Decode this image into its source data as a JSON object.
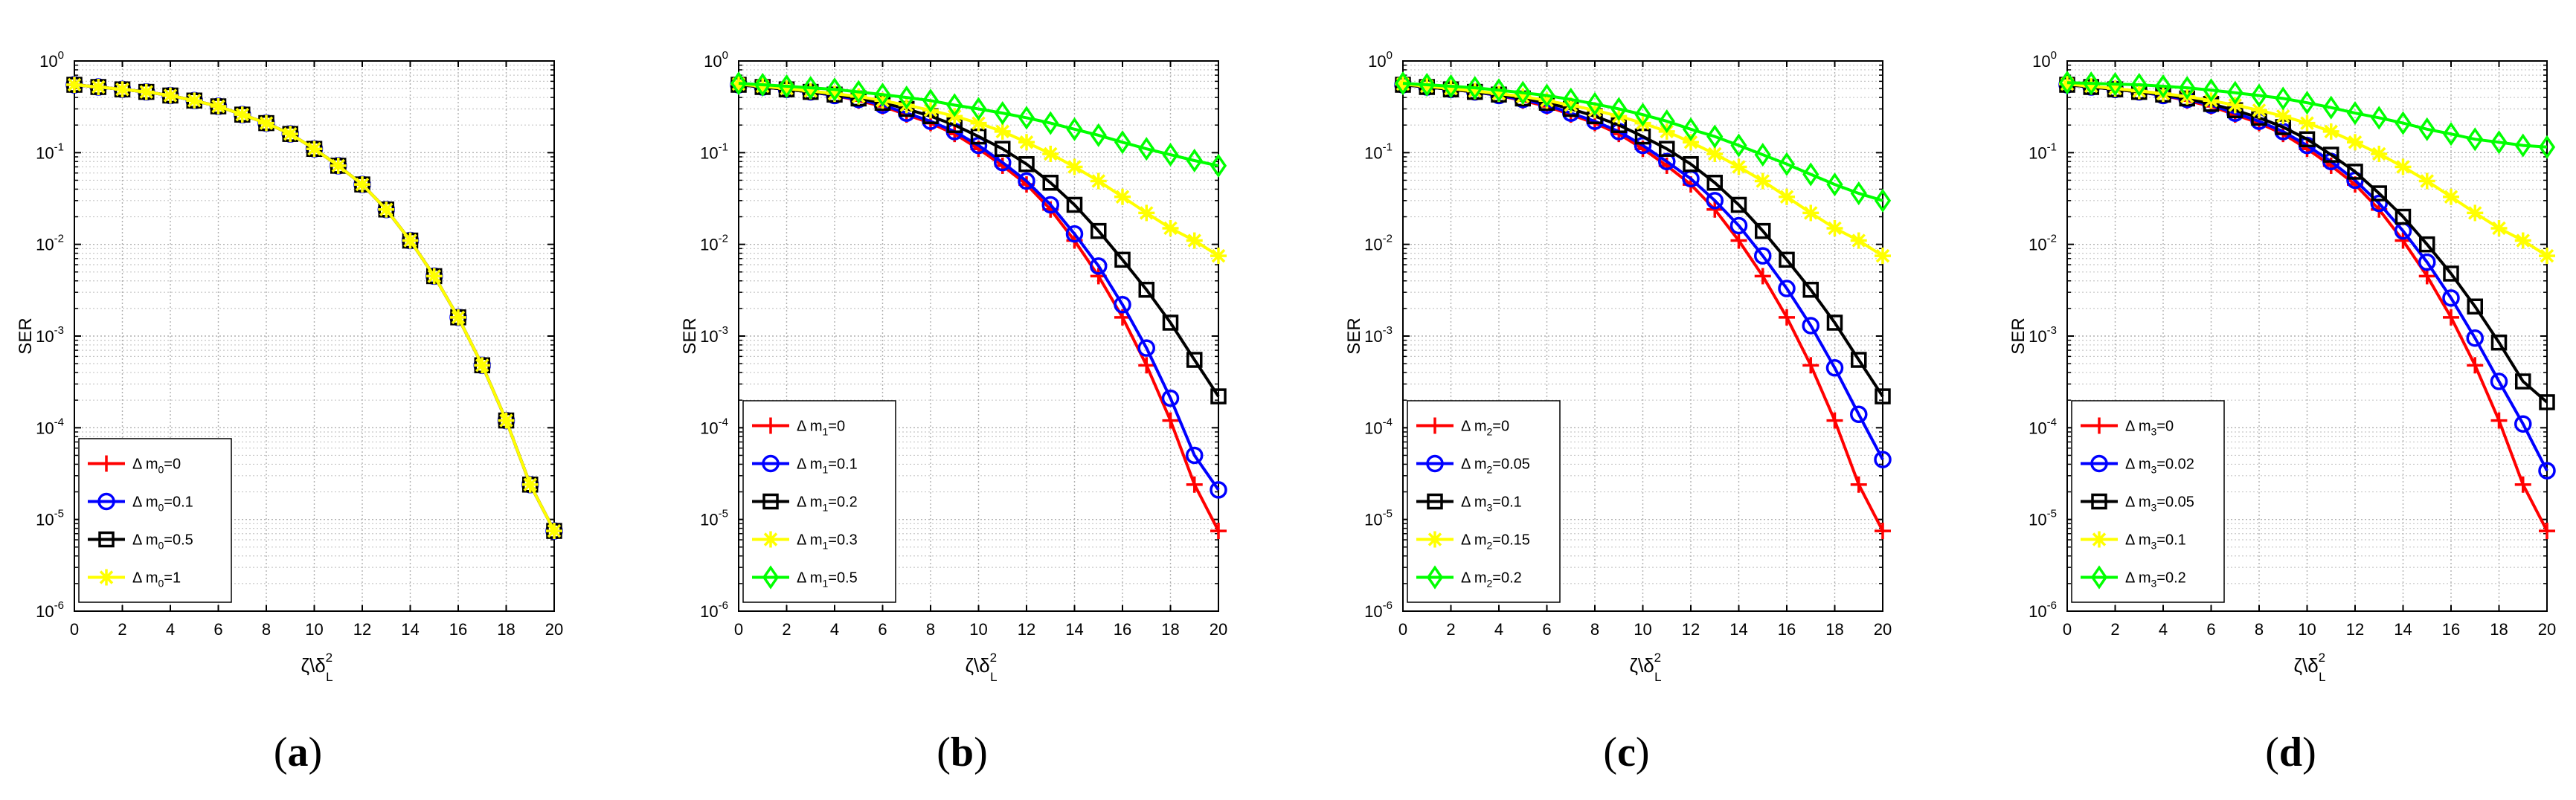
{
  "figure": {
    "panels": [
      {
        "caption": "(a)"
      },
      {
        "caption": "(b)"
      },
      {
        "caption": "(c)"
      },
      {
        "caption": "(d)"
      }
    ]
  },
  "chart_data": [
    {
      "type": "line",
      "title": "",
      "ylabel": "SER",
      "xlabel": "ζ\\δ",
      "xlabel_superscript": "2",
      "xlabel_subscript": "L",
      "yscale": "log",
      "xlim": [
        0,
        20
      ],
      "ylim": [
        1e-06,
        1
      ],
      "xticks": [
        0,
        2,
        4,
        6,
        8,
        10,
        12,
        14,
        16,
        18,
        20
      ],
      "yticks": [
        {
          "value": 1,
          "label": "10",
          "exp": "0"
        },
        {
          "value": 0.1,
          "label": "10",
          "exp": "-1"
        },
        {
          "value": 0.01,
          "label": "10",
          "exp": "-2"
        },
        {
          "value": 0.001,
          "label": "10",
          "exp": "-3"
        },
        {
          "value": 0.0001,
          "label": "10",
          "exp": "-4"
        },
        {
          "value": 1e-05,
          "label": "10",
          "exp": "-5"
        },
        {
          "value": 1e-06,
          "label": "10",
          "exp": "-6"
        }
      ],
      "grid": true,
      "legend_position": "bottom-left",
      "x": [
        0,
        1,
        2,
        3,
        4,
        5,
        6,
        7,
        8,
        9,
        10,
        11,
        12,
        13,
        14,
        15,
        16,
        17,
        18,
        19,
        20
      ],
      "series": [
        {
          "name": "Δ m0=0",
          "legend_prefix": "Δ m",
          "legend_sub": "0",
          "legend_suffix": "=0",
          "color": "#ff0000",
          "marker": "plus",
          "values": [
            0.55,
            0.52,
            0.49,
            0.46,
            0.42,
            0.37,
            0.32,
            0.26,
            0.21,
            0.16,
            0.11,
            0.072,
            0.045,
            0.024,
            0.011,
            0.0045,
            0.0016,
            0.00048,
            0.00012,
            2.4e-05,
            7.5e-06
          ]
        },
        {
          "name": "Δ m0=0.1",
          "legend_prefix": "Δ m",
          "legend_sub": "0",
          "legend_suffix": "=0.1",
          "color": "#0000ff",
          "marker": "circle",
          "values": [
            0.55,
            0.52,
            0.49,
            0.46,
            0.42,
            0.37,
            0.32,
            0.26,
            0.21,
            0.16,
            0.11,
            0.072,
            0.045,
            0.024,
            0.011,
            0.0045,
            0.0016,
            0.00048,
            0.00012,
            2.4e-05,
            7.5e-06
          ]
        },
        {
          "name": "Δ m0=0.5",
          "legend_prefix": "Δ m",
          "legend_sub": "0",
          "legend_suffix": "=0.5",
          "color": "#000000",
          "marker": "square",
          "values": [
            0.55,
            0.52,
            0.49,
            0.46,
            0.42,
            0.37,
            0.32,
            0.26,
            0.21,
            0.16,
            0.11,
            0.072,
            0.045,
            0.024,
            0.011,
            0.0045,
            0.0016,
            0.00048,
            0.00012,
            2.4e-05,
            7.5e-06
          ]
        },
        {
          "name": "Δ m0=1",
          "legend_prefix": "Δ m",
          "legend_sub": "0",
          "legend_suffix": "=1",
          "color": "#ffff00",
          "marker": "star",
          "values": [
            0.55,
            0.52,
            0.49,
            0.46,
            0.42,
            0.37,
            0.32,
            0.26,
            0.21,
            0.16,
            0.11,
            0.072,
            0.045,
            0.024,
            0.011,
            0.0045,
            0.0016,
            0.00048,
            0.00012,
            2.4e-05,
            7.5e-06
          ]
        }
      ]
    },
    {
      "type": "line",
      "title": "",
      "ylabel": "SER",
      "xlabel": "ζ\\δ",
      "xlabel_superscript": "2",
      "xlabel_subscript": "L",
      "yscale": "log",
      "xlim": [
        0,
        20
      ],
      "ylim": [
        1e-06,
        1
      ],
      "xticks": [
        0,
        2,
        4,
        6,
        8,
        10,
        12,
        14,
        16,
        18,
        20
      ],
      "yticks": [
        {
          "value": 1,
          "label": "10",
          "exp": "0"
        },
        {
          "value": 0.1,
          "label": "10",
          "exp": "-1"
        },
        {
          "value": 0.01,
          "label": "10",
          "exp": "-2"
        },
        {
          "value": 0.001,
          "label": "10",
          "exp": "-3"
        },
        {
          "value": 0.0001,
          "label": "10",
          "exp": "-4"
        },
        {
          "value": 1e-05,
          "label": "10",
          "exp": "-5"
        },
        {
          "value": 1e-06,
          "label": "10",
          "exp": "-6"
        }
      ],
      "grid": true,
      "legend_position": "bottom-left",
      "x": [
        0,
        1,
        2,
        3,
        4,
        5,
        6,
        7,
        8,
        9,
        10,
        11,
        12,
        13,
        14,
        15,
        16,
        17,
        18,
        19,
        20
      ],
      "series": [
        {
          "name": "Δ m1=0",
          "legend_prefix": "Δ m",
          "legend_sub": "1",
          "legend_suffix": "=0",
          "color": "#ff0000",
          "marker": "plus",
          "values": [
            0.55,
            0.52,
            0.49,
            0.46,
            0.42,
            0.37,
            0.32,
            0.26,
            0.21,
            0.16,
            0.11,
            0.072,
            0.045,
            0.024,
            0.011,
            0.0045,
            0.0016,
            0.00048,
            0.00012,
            2.4e-05,
            7.5e-06
          ]
        },
        {
          "name": "Δ m1=0.1",
          "legend_prefix": "Δ m",
          "legend_sub": "1",
          "legend_suffix": "=0.1",
          "color": "#0000ff",
          "marker": "circle",
          "values": [
            0.55,
            0.52,
            0.49,
            0.46,
            0.42,
            0.38,
            0.33,
            0.27,
            0.22,
            0.17,
            0.12,
            0.078,
            0.049,
            0.027,
            0.013,
            0.0058,
            0.0022,
            0.00074,
            0.00021,
            5e-05,
            2.1e-05
          ]
        },
        {
          "name": "Δ m1=0.2",
          "legend_prefix": "Δ m",
          "legend_sub": "1",
          "legend_suffix": "=0.2",
          "color": "#000000",
          "marker": "square",
          "values": [
            0.55,
            0.52,
            0.49,
            0.46,
            0.43,
            0.39,
            0.35,
            0.3,
            0.25,
            0.2,
            0.15,
            0.11,
            0.075,
            0.047,
            0.027,
            0.014,
            0.0068,
            0.0032,
            0.0014,
            0.00055,
            0.00022
          ]
        },
        {
          "name": "Δ m1=0.3",
          "legend_prefix": "Δ m",
          "legend_sub": "1",
          "legend_suffix": "=0.3",
          "color": "#ffff00",
          "marker": "star",
          "values": [
            0.56,
            0.53,
            0.5,
            0.47,
            0.44,
            0.41,
            0.37,
            0.33,
            0.29,
            0.25,
            0.21,
            0.17,
            0.13,
            0.097,
            0.07,
            0.049,
            0.033,
            0.022,
            0.015,
            0.011,
            0.0075
          ]
        },
        {
          "name": "Δ m1=0.5",
          "legend_prefix": "Δ m",
          "legend_sub": "1",
          "legend_suffix": "=0.5",
          "color": "#00ff00",
          "marker": "diamond",
          "values": [
            0.57,
            0.55,
            0.53,
            0.51,
            0.49,
            0.46,
            0.43,
            0.4,
            0.37,
            0.33,
            0.3,
            0.27,
            0.24,
            0.21,
            0.18,
            0.155,
            0.13,
            0.11,
            0.095,
            0.082,
            0.072
          ]
        }
      ]
    },
    {
      "type": "line",
      "title": "",
      "ylabel": "SER",
      "xlabel": "ζ\\δ",
      "xlabel_superscript": "2",
      "xlabel_subscript": "L",
      "yscale": "log",
      "xlim": [
        0,
        20
      ],
      "ylim": [
        1e-06,
        1
      ],
      "xticks": [
        0,
        2,
        4,
        6,
        8,
        10,
        12,
        14,
        16,
        18,
        20
      ],
      "yticks": [
        {
          "value": 1,
          "label": "10",
          "exp": "0"
        },
        {
          "value": 0.1,
          "label": "10",
          "exp": "-1"
        },
        {
          "value": 0.01,
          "label": "10",
          "exp": "-2"
        },
        {
          "value": 0.001,
          "label": "10",
          "exp": "-3"
        },
        {
          "value": 0.0001,
          "label": "10",
          "exp": "-4"
        },
        {
          "value": 1e-05,
          "label": "10",
          "exp": "-5"
        },
        {
          "value": 1e-06,
          "label": "10",
          "exp": "-6"
        }
      ],
      "grid": true,
      "legend_position": "bottom-left",
      "x": [
        0,
        1,
        2,
        3,
        4,
        5,
        6,
        7,
        8,
        9,
        10,
        11,
        12,
        13,
        14,
        15,
        16,
        17,
        18,
        19,
        20
      ],
      "series": [
        {
          "name": "Δ m2=0",
          "legend_prefix": "Δ m",
          "legend_sub": "2",
          "legend_suffix": "=0",
          "color": "#ff0000",
          "marker": "plus",
          "values": [
            0.55,
            0.52,
            0.49,
            0.46,
            0.42,
            0.37,
            0.32,
            0.26,
            0.21,
            0.16,
            0.11,
            0.072,
            0.045,
            0.024,
            0.011,
            0.0045,
            0.0016,
            0.00048,
            0.00012,
            2.4e-05,
            7.5e-06
          ]
        },
        {
          "name": "Δ m2=0.05",
          "legend_prefix": "Δ m",
          "legend_sub": "2",
          "legend_suffix": "=0.05",
          "color": "#0000ff",
          "marker": "circle",
          "values": [
            0.55,
            0.52,
            0.49,
            0.46,
            0.42,
            0.38,
            0.33,
            0.27,
            0.22,
            0.17,
            0.12,
            0.08,
            0.052,
            0.03,
            0.016,
            0.0075,
            0.0033,
            0.0013,
            0.00045,
            0.00014,
            4.5e-05
          ]
        },
        {
          "name": "Δ m3=0.1",
          "legend_prefix": "Δ m",
          "legend_sub": "3",
          "legend_suffix": "=0.1",
          "color": "#000000",
          "marker": "square",
          "values": [
            0.55,
            0.52,
            0.49,
            0.46,
            0.43,
            0.39,
            0.35,
            0.3,
            0.25,
            0.2,
            0.15,
            0.11,
            0.075,
            0.047,
            0.027,
            0.014,
            0.0068,
            0.0032,
            0.0014,
            0.00055,
            0.00022
          ]
        },
        {
          "name": "Δ m2=0.15",
          "legend_prefix": "Δ m",
          "legend_sub": "2",
          "legend_suffix": "=0.15",
          "color": "#ffff00",
          "marker": "star",
          "values": [
            0.56,
            0.53,
            0.5,
            0.47,
            0.44,
            0.41,
            0.37,
            0.33,
            0.29,
            0.25,
            0.21,
            0.17,
            0.13,
            0.097,
            0.07,
            0.049,
            0.033,
            0.022,
            0.015,
            0.011,
            0.0075
          ]
        },
        {
          "name": "Δ m2=0.2",
          "legend_prefix": "Δ m",
          "legend_sub": "2",
          "legend_suffix": "=0.2",
          "color": "#00ff00",
          "marker": "diamond",
          "values": [
            0.57,
            0.55,
            0.53,
            0.51,
            0.48,
            0.45,
            0.42,
            0.38,
            0.34,
            0.3,
            0.26,
            0.22,
            0.18,
            0.15,
            0.12,
            0.095,
            0.075,
            0.058,
            0.045,
            0.036,
            0.03
          ]
        }
      ]
    },
    {
      "type": "line",
      "title": "",
      "ylabel": "SER",
      "xlabel": "ζ\\δ",
      "xlabel_superscript": "2",
      "xlabel_subscript": "L",
      "yscale": "log",
      "xlim": [
        0,
        20
      ],
      "ylim": [
        1e-06,
        1
      ],
      "xticks": [
        0,
        2,
        4,
        6,
        8,
        10,
        12,
        14,
        16,
        18,
        20
      ],
      "yticks": [
        {
          "value": 1,
          "label": "10",
          "exp": "0"
        },
        {
          "value": 0.1,
          "label": "10",
          "exp": "-1"
        },
        {
          "value": 0.01,
          "label": "10",
          "exp": "-2"
        },
        {
          "value": 0.001,
          "label": "10",
          "exp": "-3"
        },
        {
          "value": 0.0001,
          "label": "10",
          "exp": "-4"
        },
        {
          "value": 1e-05,
          "label": "10",
          "exp": "-5"
        },
        {
          "value": 1e-06,
          "label": "10",
          "exp": "-6"
        }
      ],
      "grid": true,
      "legend_position": "bottom-left",
      "x": [
        0,
        1,
        2,
        3,
        4,
        5,
        6,
        7,
        8,
        9,
        10,
        11,
        12,
        13,
        14,
        15,
        16,
        17,
        18,
        19,
        20
      ],
      "series": [
        {
          "name": "Δ m3=0",
          "legend_prefix": "Δ m",
          "legend_sub": "3",
          "legend_suffix": "=0",
          "color": "#ff0000",
          "marker": "plus",
          "values": [
            0.55,
            0.52,
            0.49,
            0.46,
            0.42,
            0.37,
            0.32,
            0.26,
            0.21,
            0.16,
            0.11,
            0.072,
            0.045,
            0.024,
            0.011,
            0.0045,
            0.0016,
            0.00048,
            0.00012,
            2.4e-05,
            7.5e-06
          ]
        },
        {
          "name": "Δ m3=0.02",
          "legend_prefix": "Δ m",
          "legend_sub": "3",
          "legend_suffix": "=0.02",
          "color": "#0000ff",
          "marker": "circle",
          "values": [
            0.55,
            0.52,
            0.49,
            0.46,
            0.42,
            0.38,
            0.33,
            0.27,
            0.22,
            0.17,
            0.12,
            0.08,
            0.05,
            0.028,
            0.014,
            0.0064,
            0.0026,
            0.00095,
            0.00032,
            0.00011,
            3.4e-05
          ]
        },
        {
          "name": "Δ m3=0.05",
          "legend_prefix": "Δ m",
          "legend_sub": "3",
          "legend_suffix": "=0.05",
          "color": "#000000",
          "marker": "square",
          "values": [
            0.55,
            0.52,
            0.49,
            0.46,
            0.43,
            0.39,
            0.34,
            0.29,
            0.24,
            0.19,
            0.14,
            0.095,
            0.062,
            0.036,
            0.02,
            0.01,
            0.0048,
            0.0021,
            0.00085,
            0.00032,
            0.00019
          ]
        },
        {
          "name": "Δ m3=0.1",
          "legend_prefix": "Δ m",
          "legend_sub": "3",
          "legend_suffix": "=0.1",
          "color": "#ffff00",
          "marker": "star",
          "values": [
            0.56,
            0.53,
            0.5,
            0.47,
            0.44,
            0.41,
            0.37,
            0.33,
            0.29,
            0.25,
            0.21,
            0.17,
            0.13,
            0.097,
            0.07,
            0.049,
            0.033,
            0.022,
            0.015,
            0.011,
            0.0075
          ]
        },
        {
          "name": "Δ m3=0.2",
          "legend_prefix": "Δ m",
          "legend_sub": "3",
          "legend_suffix": "=0.2",
          "color": "#00ff00",
          "marker": "diamond",
          "values": [
            0.58,
            0.57,
            0.56,
            0.55,
            0.53,
            0.51,
            0.48,
            0.45,
            0.42,
            0.39,
            0.35,
            0.31,
            0.27,
            0.24,
            0.21,
            0.18,
            0.16,
            0.14,
            0.13,
            0.12,
            0.115
          ]
        }
      ]
    }
  ]
}
